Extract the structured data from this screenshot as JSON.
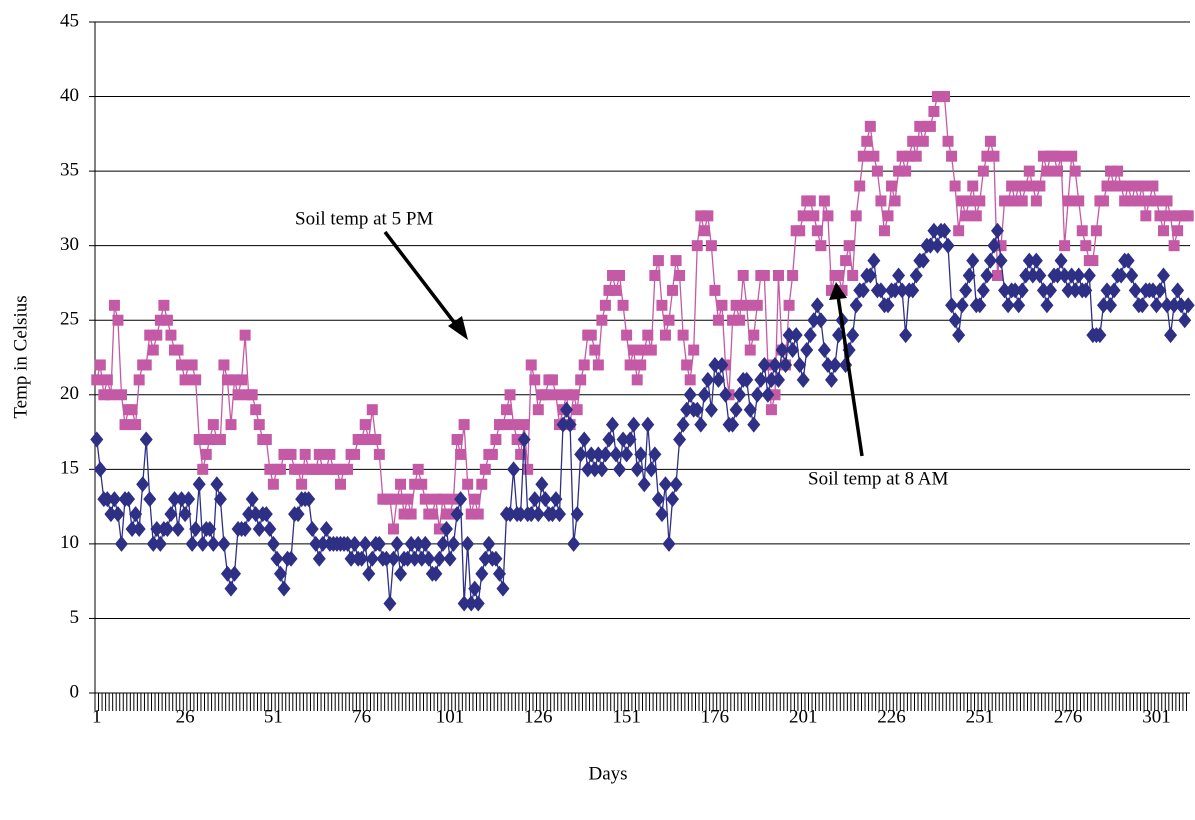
{
  "chart_data": {
    "type": "line",
    "x_label": "Days",
    "y_label": "Temp in Celsius",
    "annotations": [
      "Soil temp at 5 PM",
      "Soil temp at 8 AM"
    ],
    "x": [
      1,
      2,
      3,
      4,
      5,
      6,
      7,
      8,
      9,
      10,
      11,
      12,
      13,
      14,
      15,
      16,
      17,
      18,
      19,
      20,
      21,
      22,
      23,
      24,
      25,
      26,
      27,
      28,
      29,
      30,
      31,
      32,
      33,
      34,
      35,
      36,
      37,
      38,
      39,
      40,
      41,
      42,
      43,
      44,
      45,
      46,
      47,
      48,
      49,
      50,
      51,
      52,
      53,
      54,
      55,
      56,
      57,
      58,
      59,
      60,
      61,
      62,
      63,
      64,
      65,
      66,
      67,
      68,
      69,
      70,
      71,
      72,
      73,
      74,
      75,
      76,
      77,
      78,
      79,
      80,
      81,
      82,
      83,
      84,
      85,
      86,
      87,
      88,
      89,
      90,
      91,
      92,
      93,
      94,
      95,
      96,
      97,
      98,
      99,
      100,
      101,
      102,
      103,
      104,
      105,
      106,
      107,
      108,
      109,
      110,
      111,
      112,
      113,
      114,
      115,
      116,
      117,
      118,
      119,
      120,
      121,
      122,
      123,
      124,
      125,
      126,
      127,
      128,
      129,
      130,
      131,
      132,
      133,
      134,
      135,
      136,
      137,
      138,
      139,
      140,
      141,
      142,
      143,
      144,
      145,
      146,
      147,
      148,
      149,
      150,
      151,
      152,
      153,
      154,
      155,
      156,
      157,
      158,
      159,
      160,
      161,
      162,
      163,
      164,
      165,
      166,
      167,
      168,
      169,
      170,
      171,
      172,
      173,
      174,
      175,
      176,
      177,
      178,
      179,
      180,
      181,
      182,
      183,
      184,
      185,
      186,
      187,
      188,
      189,
      190,
      191,
      192,
      193,
      194,
      195,
      196,
      197,
      198,
      199,
      200,
      201,
      202,
      203,
      204,
      205,
      206,
      207,
      208,
      209,
      210,
      211,
      212,
      213,
      214,
      215,
      216,
      217,
      218,
      219,
      220,
      221,
      222,
      223,
      224,
      225,
      226,
      227,
      228,
      229,
      230,
      231,
      232,
      233,
      234,
      235,
      236,
      237,
      238,
      239,
      240,
      241,
      242,
      243,
      244,
      245,
      246,
      247,
      248,
      249,
      250,
      251,
      252,
      253,
      254,
      255,
      256,
      257,
      258,
      259,
      260,
      261,
      262,
      263,
      264,
      265,
      266,
      267,
      268,
      269,
      270,
      271,
      272,
      273,
      274,
      275,
      276,
      277,
      278,
      279,
      280,
      281,
      282,
      283,
      284,
      285,
      286,
      287,
      288,
      289,
      290,
      291,
      292,
      293,
      294,
      295,
      296,
      297,
      298,
      299,
      300,
      301,
      302,
      303,
      304,
      305,
      306,
      307,
      308,
      309,
      310
    ],
    "xlim": [
      0.5,
      310.5
    ],
    "xticks": [
      1,
      26,
      51,
      76,
      101,
      126,
      151,
      176,
      201,
      226,
      251,
      276,
      301
    ],
    "ylim": [
      0,
      45
    ],
    "yticks": [
      0,
      5,
      10,
      15,
      20,
      25,
      30,
      35,
      40,
      45
    ],
    "grid": true,
    "series": [
      {
        "name": "Soil temp at 5 PM",
        "color": "#c45aa6",
        "marker": "square",
        "values": [
          21,
          22,
          20,
          21,
          20,
          26,
          25,
          20,
          18,
          19,
          19,
          18,
          21,
          22,
          22,
          24,
          23,
          24,
          25,
          26,
          25,
          24,
          23,
          23,
          22,
          21,
          22,
          22,
          21,
          17,
          15,
          16,
          17,
          18,
          17,
          17,
          22,
          21,
          18,
          21,
          20,
          21,
          24,
          20,
          20,
          19,
          18,
          17,
          17,
          15,
          14,
          15,
          15,
          16,
          16,
          16,
          15,
          15,
          14,
          16,
          15,
          15,
          15,
          16,
          15,
          15,
          16,
          15,
          15,
          14,
          15,
          15,
          16,
          16,
          17,
          17,
          18,
          17,
          19,
          17,
          16,
          13,
          13,
          13,
          11,
          13,
          14,
          12,
          13,
          12,
          14,
          15,
          14,
          13,
          12,
          12,
          13,
          11,
          13,
          12,
          12,
          13,
          17,
          16,
          18,
          14,
          12,
          13,
          12,
          14,
          15,
          16,
          16,
          17,
          18,
          18,
          19,
          20,
          18,
          17,
          16,
          18,
          15,
          22,
          21,
          19,
          20,
          20,
          21,
          21,
          20,
          18,
          19,
          20,
          18,
          20,
          19,
          21,
          22,
          24,
          24,
          23,
          22,
          25,
          26,
          27,
          28,
          27,
          28,
          26,
          24,
          22,
          23,
          21,
          22,
          23,
          24,
          23,
          28,
          29,
          26,
          24,
          25,
          27,
          29,
          28,
          24,
          22,
          21,
          23,
          30,
          32,
          31,
          32,
          30,
          27,
          25,
          26,
          22,
          20,
          25,
          26,
          25,
          28,
          26,
          23,
          24,
          26,
          28,
          28,
          22,
          19,
          20,
          28,
          23,
          22,
          26,
          28,
          31,
          31,
          32,
          33,
          33,
          32,
          31,
          30,
          33,
          32,
          27,
          28,
          28,
          27,
          29,
          30,
          28,
          32,
          34,
          36,
          37,
          38,
          36,
          35,
          33,
          31,
          32,
          34,
          33,
          35,
          36,
          35,
          36,
          37,
          36,
          38,
          37,
          38,
          38,
          39,
          40,
          40,
          40,
          37,
          36,
          34,
          31,
          33,
          32,
          33,
          34,
          32,
          33,
          35,
          36,
          37,
          36,
          28,
          30,
          33,
          33,
          34,
          33,
          34,
          33,
          34,
          35,
          34,
          33,
          34,
          36,
          35,
          36,
          36,
          35,
          36,
          30,
          33,
          36,
          35,
          33,
          31,
          30,
          29,
          29,
          31,
          33,
          33,
          34,
          35,
          34,
          35,
          34,
          33,
          34,
          33,
          34,
          33,
          34,
          32,
          33,
          34,
          33,
          32,
          31,
          33,
          32,
          30,
          31,
          32,
          32,
          32
        ]
      },
      {
        "name": "Soil temp at 8 AM",
        "color": "#2e3085",
        "marker": "diamond",
        "values": [
          17,
          15,
          13,
          13,
          12,
          13,
          12,
          10,
          13,
          13,
          11,
          12,
          11,
          14,
          17,
          13,
          10,
          11,
          10,
          11,
          11,
          12,
          13,
          11,
          13,
          12,
          13,
          10,
          11,
          14,
          10,
          11,
          11,
          10,
          14,
          13,
          10,
          8,
          7,
          8,
          11,
          11,
          11,
          12,
          13,
          12,
          11,
          12,
          12,
          11,
          10,
          9,
          8,
          7,
          9,
          9,
          12,
          12,
          13,
          13,
          13,
          11,
          10,
          9,
          10,
          11,
          10,
          10,
          10,
          10,
          10,
          10,
          9,
          10,
          9,
          9,
          10,
          8,
          9,
          10,
          10,
          9,
          9,
          6,
          9,
          10,
          8,
          9,
          9,
          10,
          9,
          10,
          9,
          10,
          9,
          8,
          8,
          9,
          10,
          11,
          9,
          10,
          12,
          13,
          6,
          10,
          6,
          7,
          6,
          8,
          9,
          10,
          9,
          9,
          8,
          7,
          12,
          12,
          15,
          12,
          12,
          17,
          12,
          12,
          13,
          12,
          14,
          13,
          12,
          12,
          13,
          12,
          18,
          19,
          18,
          10,
          12,
          16,
          17,
          15,
          16,
          15,
          16,
          15,
          16,
          17,
          18,
          16,
          15,
          17,
          16,
          17,
          18,
          15,
          16,
          14,
          18,
          15,
          16,
          13,
          12,
          14,
          10,
          13,
          14,
          17,
          18,
          19,
          20,
          19,
          19,
          18,
          20,
          21,
          19,
          22,
          21,
          22,
          20,
          18,
          18,
          19,
          20,
          21,
          21,
          19,
          18,
          20,
          21,
          22,
          20,
          21,
          22,
          21,
          23,
          22,
          24,
          23,
          24,
          22,
          21,
          23,
          24,
          25,
          26,
          25,
          23,
          22,
          21,
          22,
          24,
          25,
          22,
          23,
          24,
          26,
          27,
          27,
          28,
          28,
          29,
          27,
          27,
          26,
          26,
          27,
          27,
          28,
          27,
          24,
          27,
          27,
          28,
          29,
          29,
          30,
          30,
          31,
          30,
          31,
          31,
          30,
          26,
          25,
          24,
          26,
          27,
          28,
          29,
          26,
          26,
          27,
          28,
          29,
          30,
          31,
          29,
          27,
          26,
          27,
          27,
          26,
          27,
          28,
          29,
          28,
          29,
          28,
          27,
          26,
          27,
          28,
          28,
          29,
          28,
          27,
          28,
          27,
          28,
          27,
          27,
          28,
          24,
          24,
          24,
          26,
          27,
          26,
          27,
          28,
          28,
          29,
          29,
          28,
          27,
          26,
          26,
          27,
          27,
          27,
          26,
          27,
          28,
          26,
          24,
          26,
          27,
          26,
          25,
          26
        ]
      }
    ]
  }
}
